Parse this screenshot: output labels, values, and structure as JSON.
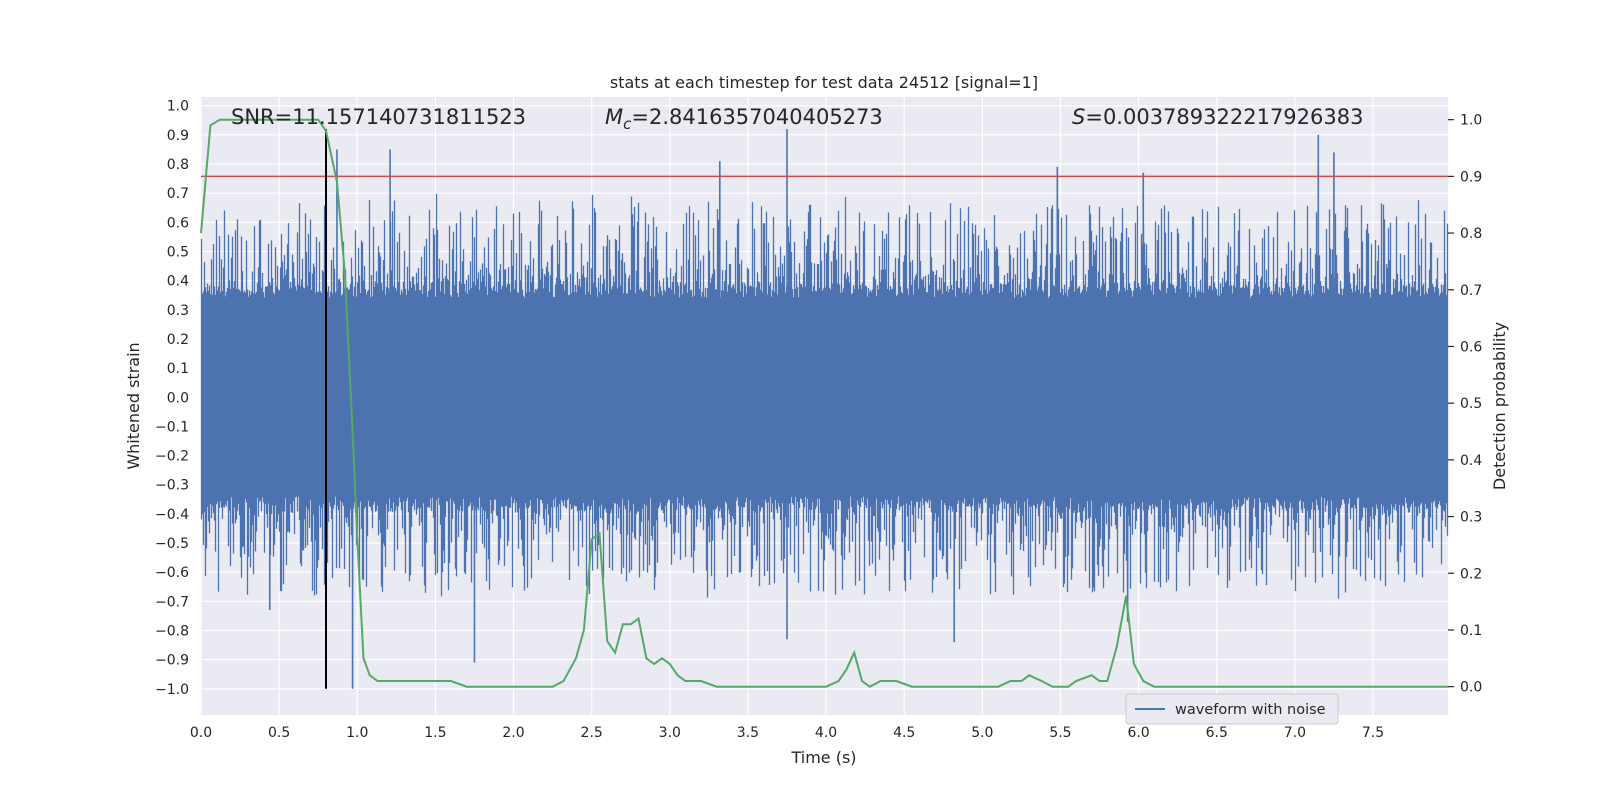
{
  "chart_data": {
    "type": "line",
    "title": "stats at each timestep for test data 24512 [signal=1]",
    "xlabel": "Time (s)",
    "ylabel": "Whitened strain",
    "ylabel_right": "Detection probability",
    "xlim": [
      0.0,
      7.98
    ],
    "ylim": [
      -1.09,
      1.03
    ],
    "ylim_right": [
      -0.05,
      1.04
    ],
    "x_ticks": [
      "0.0",
      "0.5",
      "1.0",
      "1.5",
      "2.0",
      "2.5",
      "3.0",
      "3.5",
      "4.0",
      "4.5",
      "5.0",
      "5.5",
      "6.0",
      "6.5",
      "7.0",
      "7.5"
    ],
    "y_ticks": [
      "1.0",
      "0.9",
      "0.8",
      "0.7",
      "0.6",
      "0.5",
      "0.4",
      "0.3",
      "0.2",
      "0.1",
      "0.0",
      "−0.1",
      "−0.2",
      "−0.3",
      "−0.4",
      "−0.5",
      "−0.6",
      "−0.7",
      "−0.8",
      "−0.9",
      "−1.0"
    ],
    "y_ticks_right": [
      "1.0",
      "0.9",
      "0.8",
      "0.7",
      "0.6",
      "0.5",
      "0.4",
      "0.3",
      "0.2",
      "0.1",
      "0.0"
    ],
    "grid": true,
    "legend": {
      "placement": "lower-right",
      "entries": [
        "waveform with noise"
      ]
    },
    "annotations": {
      "snr": "SNR=11.157140731811523",
      "mc_symbol": "M",
      "mc_subscript": "c",
      "mc_value": "=2.8416357040405273",
      "s_symbol": "S",
      "s_value": "=0.003789322217926383"
    },
    "threshold_right_axis": 0.9,
    "vertical_marker": {
      "x": 0.8,
      "y_range": [
        -1.0,
        0.92
      ]
    },
    "series": [
      {
        "name": "waveform with noise",
        "axis": "left",
        "color": "#4c72b0",
        "summary": "dense noise band about ±0.3, occasional spikes to about ±0.9",
        "peaks": [
          [
            0.44,
            -0.73
          ],
          [
            0.8,
            0.65
          ],
          [
            0.87,
            0.85
          ],
          [
            0.97,
            -1.0
          ],
          [
            1.21,
            0.85
          ],
          [
            1.75,
            -0.91
          ],
          [
            3.32,
            0.81
          ],
          [
            3.75,
            0.92
          ],
          [
            3.75,
            -0.83
          ],
          [
            4.82,
            -0.84
          ],
          [
            5.48,
            0.79
          ],
          [
            5.93,
            -0.77
          ],
          [
            6.03,
            0.77
          ],
          [
            7.15,
            0.9
          ],
          [
            7.25,
            0.84
          ]
        ]
      },
      {
        "name": "",
        "axis": "right",
        "color": "#55a868",
        "x": [
          0.0,
          0.06,
          0.12,
          0.2,
          0.3,
          0.4,
          0.5,
          0.6,
          0.7,
          0.75,
          0.8,
          0.87,
          0.92,
          0.97,
          1.0,
          1.04,
          1.08,
          1.13,
          1.2,
          1.3,
          1.4,
          1.5,
          1.6,
          1.7,
          1.8,
          1.9,
          2.0,
          2.1,
          2.2,
          2.25,
          2.32,
          2.4,
          2.45,
          2.5,
          2.55,
          2.6,
          2.65,
          2.7,
          2.75,
          2.8,
          2.85,
          2.9,
          2.95,
          3.0,
          3.05,
          3.1,
          3.15,
          3.2,
          3.3,
          3.4,
          3.5,
          3.6,
          3.7,
          3.8,
          3.9,
          4.0,
          4.08,
          4.13,
          4.18,
          4.23,
          4.28,
          4.35,
          4.45,
          4.55,
          4.7,
          4.85,
          5.0,
          5.1,
          5.18,
          5.25,
          5.3,
          5.38,
          5.45,
          5.55,
          5.6,
          5.7,
          5.75,
          5.8,
          5.86,
          5.92,
          5.97,
          6.03,
          6.1,
          6.2,
          6.3,
          6.4,
          6.5,
          6.6,
          6.7,
          6.8,
          6.9,
          7.0,
          7.1,
          7.2,
          7.3,
          7.4,
          7.5,
          7.6,
          7.7,
          7.8,
          7.9,
          7.98
        ],
        "y": [
          0.8,
          0.99,
          1.0,
          1.0,
          1.0,
          1.0,
          1.0,
          1.0,
          1.0,
          1.0,
          0.98,
          0.89,
          0.73,
          0.45,
          0.26,
          0.05,
          0.02,
          0.01,
          0.01,
          0.01,
          0.01,
          0.01,
          0.01,
          0.0,
          0.0,
          0.0,
          0.0,
          0.0,
          0.0,
          0.0,
          0.01,
          0.05,
          0.1,
          0.26,
          0.27,
          0.08,
          0.06,
          0.11,
          0.11,
          0.12,
          0.05,
          0.04,
          0.05,
          0.04,
          0.02,
          0.01,
          0.01,
          0.01,
          0.0,
          0.0,
          0.0,
          0.0,
          0.0,
          0.0,
          0.0,
          0.0,
          0.01,
          0.03,
          0.06,
          0.01,
          0.0,
          0.01,
          0.01,
          0.0,
          0.0,
          0.0,
          0.0,
          0.0,
          0.01,
          0.01,
          0.02,
          0.01,
          0.0,
          0.0,
          0.01,
          0.02,
          0.01,
          0.01,
          0.07,
          0.16,
          0.04,
          0.01,
          0.0,
          0.0,
          0.0,
          0.0,
          0.0,
          0.0,
          0.0,
          0.0,
          0.0,
          0.0,
          0.0,
          0.0,
          0.0,
          0.0,
          0.0,
          0.0,
          0.0,
          0.0,
          0.0,
          0.0
        ]
      }
    ]
  },
  "colors": {
    "plot_bg": "#eaeaf2",
    "grid": "#ffffff",
    "threshold": "#c44e52",
    "marker": "#000000"
  }
}
